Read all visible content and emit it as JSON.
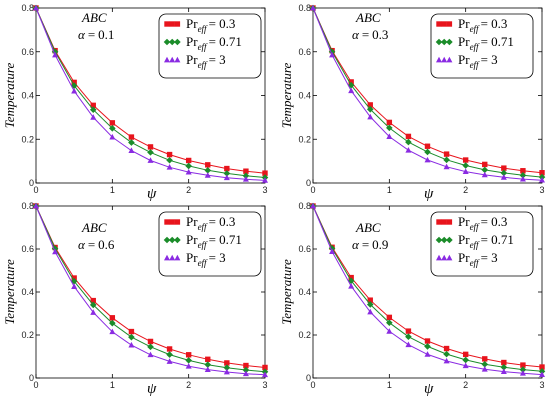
{
  "figure": {
    "panel_annotation": "ABC",
    "alpha_symbol": "α",
    "equals": "="
  },
  "chart_data": [
    {
      "type": "line",
      "alpha_text": "0.1",
      "xlabel": "ψ",
      "ylabel": "Temperature",
      "xlim": [
        0,
        3
      ],
      "ylim": [
        0,
        0.8
      ],
      "xticks": [
        "0",
        "1",
        "2",
        "3"
      ],
      "yticks": [
        "0",
        "0.2",
        "0.4",
        "0.6",
        "0.8"
      ],
      "x": [
        0,
        0.25,
        0.5,
        0.75,
        1.0,
        1.25,
        1.5,
        1.75,
        2.0,
        2.25,
        2.5,
        2.75,
        3.0
      ],
      "series": [
        {
          "name": "Pr_eff = 0.3",
          "color": "#e8141c",
          "marker": "square",
          "values": [
            0.8,
            0.605,
            0.46,
            0.355,
            0.275,
            0.21,
            0.165,
            0.13,
            0.103,
            0.083,
            0.066,
            0.054,
            0.045
          ]
        },
        {
          "name": "Pr_eff = 0.71",
          "color": "#1b8c2a",
          "marker": "diamond",
          "values": [
            0.8,
            0.6,
            0.445,
            0.335,
            0.25,
            0.185,
            0.14,
            0.104,
            0.078,
            0.058,
            0.044,
            0.033,
            0.025
          ]
        },
        {
          "name": "Pr_eff = 3",
          "color": "#8a2be2",
          "marker": "triangle",
          "values": [
            0.8,
            0.585,
            0.42,
            0.3,
            0.21,
            0.148,
            0.103,
            0.072,
            0.05,
            0.035,
            0.024,
            0.017,
            0.012
          ]
        }
      ],
      "legend_position": "top-right"
    },
    {
      "type": "line",
      "alpha_text": "0.3",
      "xlabel": "ψ",
      "ylabel": "Temperature",
      "xlim": [
        0,
        3
      ],
      "ylim": [
        0,
        0.8
      ],
      "xticks": [
        "0",
        "1",
        "2",
        "3"
      ],
      "yticks": [
        "0",
        "0.2",
        "0.4",
        "0.6",
        "0.8"
      ],
      "x": [
        0,
        0.25,
        0.5,
        0.75,
        1.0,
        1.25,
        1.5,
        1.75,
        2.0,
        2.25,
        2.5,
        2.75,
        3.0
      ],
      "series": [
        {
          "name": "Pr_eff = 0.3",
          "color": "#e8141c",
          "marker": "square",
          "values": [
            0.8,
            0.605,
            0.462,
            0.357,
            0.277,
            0.213,
            0.168,
            0.132,
            0.105,
            0.085,
            0.068,
            0.056,
            0.047
          ]
        },
        {
          "name": "Pr_eff = 0.71",
          "color": "#1b8c2a",
          "marker": "diamond",
          "values": [
            0.8,
            0.6,
            0.447,
            0.337,
            0.252,
            0.187,
            0.142,
            0.106,
            0.08,
            0.06,
            0.046,
            0.035,
            0.027
          ]
        },
        {
          "name": "Pr_eff = 3",
          "color": "#8a2be2",
          "marker": "triangle",
          "values": [
            0.8,
            0.585,
            0.422,
            0.302,
            0.212,
            0.15,
            0.105,
            0.074,
            0.052,
            0.037,
            0.026,
            0.018,
            0.013
          ]
        }
      ],
      "legend_position": "top-right"
    },
    {
      "type": "line",
      "alpha_text": "0.6",
      "xlabel": "ψ",
      "ylabel": "Temperature",
      "xlim": [
        0,
        3
      ],
      "ylim": [
        0,
        0.8
      ],
      "xticks": [
        "0",
        "1",
        "2",
        "3"
      ],
      "yticks": [
        "0",
        "0.2",
        "0.4",
        "0.6",
        "0.8"
      ],
      "x": [
        0,
        0.25,
        0.5,
        0.75,
        1.0,
        1.25,
        1.5,
        1.75,
        2.0,
        2.25,
        2.5,
        2.75,
        3.0
      ],
      "series": [
        {
          "name": "Pr_eff = 0.3",
          "color": "#e8141c",
          "marker": "square",
          "values": [
            0.8,
            0.607,
            0.465,
            0.36,
            0.28,
            0.216,
            0.17,
            0.135,
            0.108,
            0.087,
            0.07,
            0.058,
            0.049
          ]
        },
        {
          "name": "Pr_eff = 0.71",
          "color": "#1b8c2a",
          "marker": "diamond",
          "values": [
            0.8,
            0.602,
            0.45,
            0.34,
            0.255,
            0.19,
            0.145,
            0.109,
            0.082,
            0.062,
            0.048,
            0.037,
            0.029
          ]
        },
        {
          "name": "Pr_eff = 3",
          "color": "#8a2be2",
          "marker": "triangle",
          "values": [
            0.8,
            0.587,
            0.425,
            0.305,
            0.215,
            0.153,
            0.108,
            0.077,
            0.055,
            0.039,
            0.028,
            0.02,
            0.015
          ]
        }
      ],
      "legend_position": "top-right"
    },
    {
      "type": "line",
      "alpha_text": "0.9",
      "xlabel": "ψ",
      "ylabel": "Temperature",
      "xlim": [
        0,
        3
      ],
      "ylim": [
        0,
        0.8
      ],
      "xticks": [
        "0",
        "1",
        "2",
        "3"
      ],
      "yticks": [
        "0",
        "0.2",
        "0.4",
        "0.6",
        "0.8"
      ],
      "x": [
        0,
        0.25,
        0.5,
        0.75,
        1.0,
        1.25,
        1.5,
        1.75,
        2.0,
        2.25,
        2.5,
        2.75,
        3.0
      ],
      "series": [
        {
          "name": "Pr_eff = 0.3",
          "color": "#e8141c",
          "marker": "square",
          "values": [
            0.8,
            0.608,
            0.467,
            0.362,
            0.282,
            0.218,
            0.172,
            0.137,
            0.11,
            0.089,
            0.072,
            0.06,
            0.051
          ]
        },
        {
          "name": "Pr_eff = 0.71",
          "color": "#1b8c2a",
          "marker": "diamond",
          "values": [
            0.8,
            0.603,
            0.452,
            0.342,
            0.257,
            0.192,
            0.147,
            0.111,
            0.084,
            0.064,
            0.05,
            0.039,
            0.031
          ]
        },
        {
          "name": "Pr_eff = 3",
          "color": "#8a2be2",
          "marker": "triangle",
          "values": [
            0.8,
            0.588,
            0.427,
            0.307,
            0.217,
            0.155,
            0.11,
            0.079,
            0.057,
            0.041,
            0.03,
            0.022,
            0.016
          ]
        }
      ],
      "legend_position": "top-right"
    }
  ]
}
